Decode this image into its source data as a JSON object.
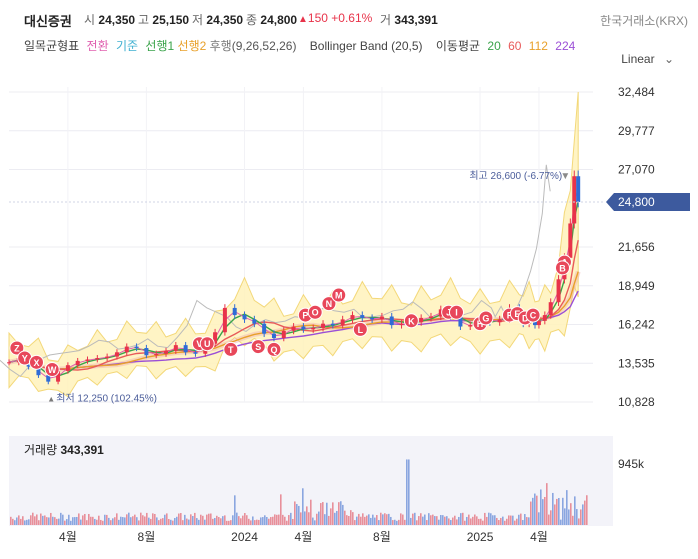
{
  "header": {
    "name": "대신증권",
    "open_label": "시",
    "open": "24,350",
    "high_label": "고",
    "high": "25,150",
    "low_label": "저",
    "low": "24,350",
    "close_label": "종",
    "close": "24,800",
    "change": "150",
    "change_pct": "+0.61%",
    "volume_label": "거",
    "volume": "343,391",
    "exchange": "한국거래소(KRX)"
  },
  "indicators": {
    "ichimoku_label": "일목균형표",
    "tenkan": "전환",
    "kijun": "기준",
    "senkou1": "선행1",
    "senkou2": "선행2",
    "chikou": "후행",
    "ichimoku_params": "(9,26,52,26)",
    "bollinger": "Bollinger Band (20,5)",
    "ma_label": "이동평균",
    "ma20": "20",
    "ma60": "60",
    "ma112": "112",
    "ma224": "224"
  },
  "scale_toggle": "Linear",
  "volume_panel": {
    "label": "거래량",
    "value": "343,391",
    "axis_label": "945k"
  },
  "annotations": {
    "high_label": "최고 26,600 (-6.77%)",
    "low_label": "최저 12,250 (102.45%)",
    "current_price": "24,800"
  },
  "colors": {
    "up": "#e8334a",
    "down": "#2f6cd6",
    "tenkan": "#e060b0",
    "kijun": "#3fb0d0",
    "ma20": "#3aa34a",
    "ma60": "#e85a5a",
    "ma112": "#e8a02a",
    "ma224": "#9b4fd6",
    "bollinger_fill": "#fff3bf",
    "bollinger_line": "#f2d46b",
    "current_badge": "#3d5a9e"
  },
  "chart_data": {
    "type": "line",
    "y_ticks": [
      "32,484",
      "29,777",
      "27,070",
      "21,656",
      "18,949",
      "16,242",
      "13,535",
      "10,828"
    ],
    "ylim": [
      10828,
      32484
    ],
    "x_tick_labels": [
      "4월",
      "8월",
      "2024",
      "4월",
      "8월",
      "2025",
      "4월"
    ],
    "x_tick_months": [
      3,
      7,
      12,
      15,
      19,
      24,
      27
    ],
    "xlim": [
      0,
      29.5
    ],
    "price_series": {
      "name": "종가",
      "x": [
        0,
        0.5,
        1,
        1.5,
        2,
        2.5,
        3,
        3.5,
        4,
        4.5,
        5,
        5.5,
        6,
        6.5,
        7,
        7.5,
        8,
        8.5,
        9,
        9.5,
        10,
        10.5,
        11,
        11.5,
        12,
        12.5,
        13,
        13.5,
        14,
        14.5,
        15,
        15.5,
        16,
        16.5,
        17,
        17.5,
        18,
        18.5,
        19,
        19.5,
        20,
        20.5,
        21,
        21.5,
        22,
        22.5,
        23,
        23.5,
        24,
        24.5,
        25,
        25.5,
        26,
        26.2,
        26.5,
        26.8,
        27,
        27.3,
        27.6,
        28,
        28.3,
        28.6,
        28.8,
        29
      ],
      "values": [
        13600,
        13900,
        13300,
        12700,
        12250,
        13000,
        13400,
        13700,
        13800,
        13900,
        14000,
        14300,
        14700,
        14600,
        14100,
        14200,
        14400,
        14800,
        14300,
        14200,
        14900,
        15700,
        17400,
        16900,
        16600,
        16300,
        15600,
        15300,
        15800,
        16100,
        15900,
        16000,
        16300,
        16200,
        16600,
        16900,
        16700,
        16600,
        16800,
        16200,
        16300,
        16400,
        16700,
        16800,
        17300,
        16800,
        16100,
        16200,
        16600,
        16400,
        16600,
        17400,
        16900,
        16300,
        17000,
        16200,
        16500,
        16900,
        17800,
        19400,
        20900,
        23300,
        26600,
        24800
      ]
    },
    "markers": [
      {
        "label": "Z",
        "x": 0.4,
        "y": 14600
      },
      {
        "label": "Y",
        "x": 0.8,
        "y": 13900
      },
      {
        "label": "X",
        "x": 1.4,
        "y": 13600
      },
      {
        "label": "W",
        "x": 2.2,
        "y": 13100
      },
      {
        "label": "V",
        "x": 9.7,
        "y": 14900
      },
      {
        "label": "U",
        "x": 10.1,
        "y": 14900
      },
      {
        "label": "T",
        "x": 11.3,
        "y": 14500
      },
      {
        "label": "S",
        "x": 12.7,
        "y": 14700
      },
      {
        "label": "Q",
        "x": 13.5,
        "y": 14500
      },
      {
        "label": "P",
        "x": 15.1,
        "y": 16900
      },
      {
        "label": "O",
        "x": 15.6,
        "y": 17100
      },
      {
        "label": "N",
        "x": 16.3,
        "y": 17700
      },
      {
        "label": "M",
        "x": 16.8,
        "y": 18300
      },
      {
        "label": "L",
        "x": 17.9,
        "y": 15900
      },
      {
        "label": "K",
        "x": 20.5,
        "y": 16500
      },
      {
        "label": "J",
        "x": 22.4,
        "y": 17100
      },
      {
        "label": "I",
        "x": 22.8,
        "y": 17100
      },
      {
        "label": "H",
        "x": 24.0,
        "y": 16300
      },
      {
        "label": "G",
        "x": 24.3,
        "y": 16700
      },
      {
        "label": "F",
        "x": 25.5,
        "y": 16900
      },
      {
        "label": "E",
        "x": 25.9,
        "y": 17000
      },
      {
        "label": "D",
        "x": 26.3,
        "y": 16700
      },
      {
        "label": "C",
        "x": 26.7,
        "y": 16900
      },
      {
        "label": "A",
        "x": 28.3,
        "y": 20600
      },
      {
        "label": "B",
        "x": 28.2,
        "y": 20200
      }
    ],
    "high_point": {
      "x": 28.8,
      "y": 26600
    },
    "low_point": {
      "x": 2.0,
      "y": 12250
    }
  }
}
